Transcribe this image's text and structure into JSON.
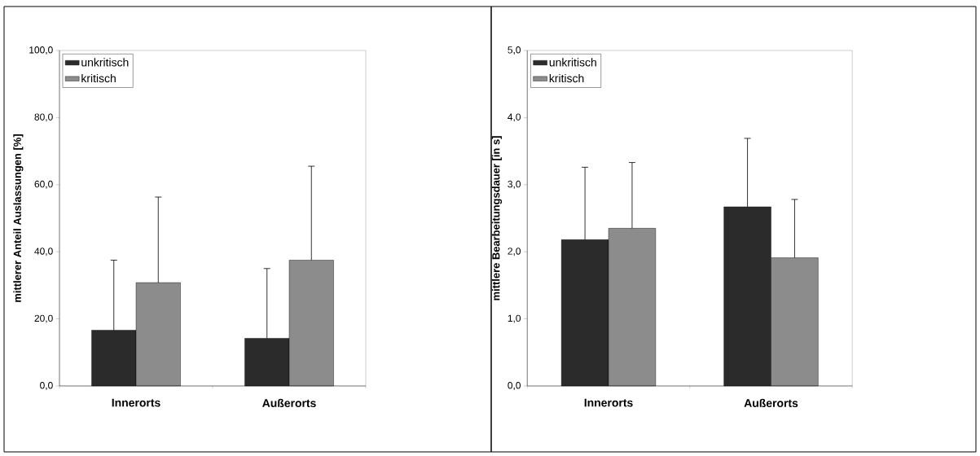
{
  "chart_data": [
    {
      "type": "bar",
      "ylabel": "mittlerer Anteil Auslassungen [%]",
      "categories": [
        "Innerorts",
        "Außerorts"
      ],
      "series": [
        {
          "name": "unkritisch",
          "color": "#2b2b2b",
          "values": [
            16.6,
            14.2
          ],
          "errors": [
            [
              16.6,
              37.5
            ],
            [
              14.2,
              35.0
            ]
          ]
        },
        {
          "name": "kritisch",
          "color": "#8c8c8c",
          "values": [
            30.8,
            37.5
          ],
          "errors": [
            [
              30.8,
              56.3
            ],
            [
              37.5,
              65.5
            ]
          ]
        }
      ],
      "ylim": [
        0,
        100
      ],
      "yticks": [
        {
          "value": 0,
          "label": "0,0"
        },
        {
          "value": 20,
          "label": "20,0"
        },
        {
          "value": 40,
          "label": "40,0"
        },
        {
          "value": 60,
          "label": "60,0"
        },
        {
          "value": 80,
          "label": "80,0"
        },
        {
          "value": 100,
          "label": "100,0"
        }
      ],
      "grid": false,
      "legend": "top left"
    },
    {
      "type": "bar",
      "ylabel": "mittlere Bearbeitungsdauer [in s]",
      "categories": [
        "Innerorts",
        "Außerorts"
      ],
      "series": [
        {
          "name": "unkritisch",
          "color": "#2b2b2b",
          "values": [
            2.18,
            2.67
          ],
          "errors": [
            [
              2.18,
              3.26
            ],
            [
              2.67,
              3.69
            ]
          ]
        },
        {
          "name": "kritisch",
          "color": "#8c8c8c",
          "values": [
            2.35,
            1.91
          ],
          "errors": [
            [
              2.35,
              3.33
            ],
            [
              1.91,
              2.78
            ]
          ]
        }
      ],
      "ylim": [
        0,
        5
      ],
      "yticks": [
        {
          "value": 0,
          "label": "0,0"
        },
        {
          "value": 1,
          "label": "1,0"
        },
        {
          "value": 2,
          "label": "2,0"
        },
        {
          "value": 3,
          "label": "3,0"
        },
        {
          "value": 4,
          "label": "4,0"
        },
        {
          "value": 5,
          "label": "5,0"
        }
      ],
      "grid": false,
      "legend": "top left"
    }
  ]
}
